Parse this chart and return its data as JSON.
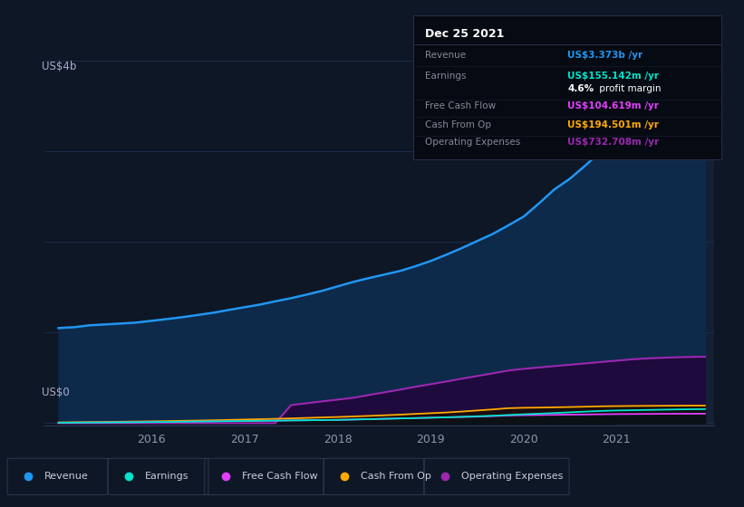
{
  "background_color": "#0e1726",
  "plot_bg_color": "#0e1726",
  "fig_width": 8.21,
  "fig_height": 5.6,
  "dpi": 100,
  "ylabel_top": "US$4b",
  "ylabel_bottom": "US$0",
  "x_tick_labels": [
    "2016",
    "2017",
    "2018",
    "2019",
    "2020",
    "2021"
  ],
  "x_tick_positions": [
    2016,
    2017,
    2018,
    2019,
    2020,
    2021
  ],
  "y_grid_color": "#1e3050",
  "series_colors": {
    "Revenue": "#2196f3",
    "Earnings": "#00e5cc",
    "Free Cash Flow": "#e040fb",
    "Cash From Op": "#ffaa00",
    "Operating Expenses": "#9c27b0"
  },
  "series_fill_colors": {
    "Revenue": "#0a2540",
    "Operating Expenses": "#2d1060"
  },
  "tooltip": {
    "title": "Dec 25 2021",
    "bg_color": "#060a12",
    "border_color": "#2a2a44",
    "title_color": "#ffffff",
    "label_color": "#888899",
    "rows": [
      {
        "label": "Revenue",
        "value": "US$3.373b /yr",
        "value_color": "#2196f3"
      },
      {
        "label": "Earnings",
        "value": "US$155.142m /yr",
        "value_color": "#00e5cc"
      },
      {
        "label": "",
        "value_bold": "4.6%",
        "value_rest": " profit margin",
        "value_color": "#ffffff"
      },
      {
        "label": "Free Cash Flow",
        "value": "US$104.619m /yr",
        "value_color": "#e040fb"
      },
      {
        "label": "Cash From Op",
        "value": "US$194.501m /yr",
        "value_color": "#ffaa00"
      },
      {
        "label": "Operating Expenses",
        "value": "US$732.708m /yr",
        "value_color": "#9c27b0"
      }
    ]
  },
  "legend_items": [
    {
      "label": "Revenue",
      "color": "#2196f3"
    },
    {
      "label": "Earnings",
      "color": "#00e5cc"
    },
    {
      "label": "Free Cash Flow",
      "color": "#e040fb"
    },
    {
      "label": "Cash From Op",
      "color": "#ffaa00"
    },
    {
      "label": "Operating Expenses",
      "color": "#9c27b0"
    }
  ],
  "x": [
    2015.0,
    2015.17,
    2015.33,
    2015.5,
    2015.67,
    2015.83,
    2016.0,
    2016.17,
    2016.33,
    2016.5,
    2016.67,
    2016.83,
    2017.0,
    2017.17,
    2017.33,
    2017.5,
    2017.67,
    2017.83,
    2018.0,
    2018.17,
    2018.33,
    2018.5,
    2018.67,
    2018.83,
    2019.0,
    2019.17,
    2019.33,
    2019.5,
    2019.67,
    2019.83,
    2020.0,
    2020.17,
    2020.33,
    2020.5,
    2020.67,
    2020.83,
    2021.0,
    2021.17,
    2021.33,
    2021.5,
    2021.67,
    2021.83,
    2021.95
  ],
  "revenue_y": [
    1050,
    1060,
    1080,
    1090,
    1100,
    1110,
    1130,
    1150,
    1170,
    1195,
    1220,
    1250,
    1280,
    1310,
    1345,
    1380,
    1420,
    1460,
    1510,
    1560,
    1600,
    1640,
    1680,
    1730,
    1790,
    1860,
    1930,
    2010,
    2090,
    2180,
    2280,
    2430,
    2580,
    2700,
    2850,
    3000,
    3100,
    3150,
    3200,
    3270,
    3320,
    3370,
    3373
  ],
  "earnings_y": [
    5,
    6,
    7,
    8,
    9,
    10,
    12,
    14,
    16,
    18,
    20,
    22,
    24,
    26,
    28,
    30,
    32,
    34,
    36,
    40,
    44,
    48,
    52,
    56,
    60,
    65,
    70,
    76,
    82,
    90,
    98,
    105,
    112,
    120,
    128,
    135,
    140,
    143,
    146,
    149,
    152,
    154,
    155
  ],
  "fcf_y": [
    5,
    6,
    7,
    8,
    9,
    10,
    12,
    14,
    16,
    18,
    20,
    22,
    24,
    26,
    28,
    30,
    32,
    34,
    36,
    40,
    44,
    48,
    52,
    56,
    60,
    64,
    68,
    72,
    78,
    84,
    88,
    90,
    92,
    94,
    96,
    98,
    100,
    101,
    102,
    103,
    104,
    104,
    105
  ],
  "cashfromop_y": [
    8,
    10,
    12,
    14,
    16,
    18,
    20,
    23,
    26,
    29,
    32,
    36,
    40,
    44,
    48,
    53,
    58,
    63,
    68,
    74,
    80,
    87,
    94,
    102,
    110,
    118,
    128,
    140,
    152,
    165,
    170,
    172,
    175,
    178,
    182,
    186,
    188,
    190,
    191,
    192,
    193,
    194,
    194
  ],
  "opex_y": [
    0,
    0,
    0,
    0,
    0,
    0,
    0,
    0,
    0,
    0,
    0,
    0,
    0,
    0,
    0,
    200,
    220,
    240,
    260,
    280,
    310,
    340,
    370,
    400,
    430,
    460,
    490,
    520,
    550,
    580,
    600,
    615,
    630,
    645,
    660,
    675,
    690,
    705,
    715,
    722,
    728,
    732,
    733
  ],
  "highlight_x_start": 2021.0,
  "highlight_x_end": 2022.1,
  "ylim_min": -30,
  "ylim_max": 4000,
  "xlim_min": 2014.85,
  "xlim_max": 2022.05
}
